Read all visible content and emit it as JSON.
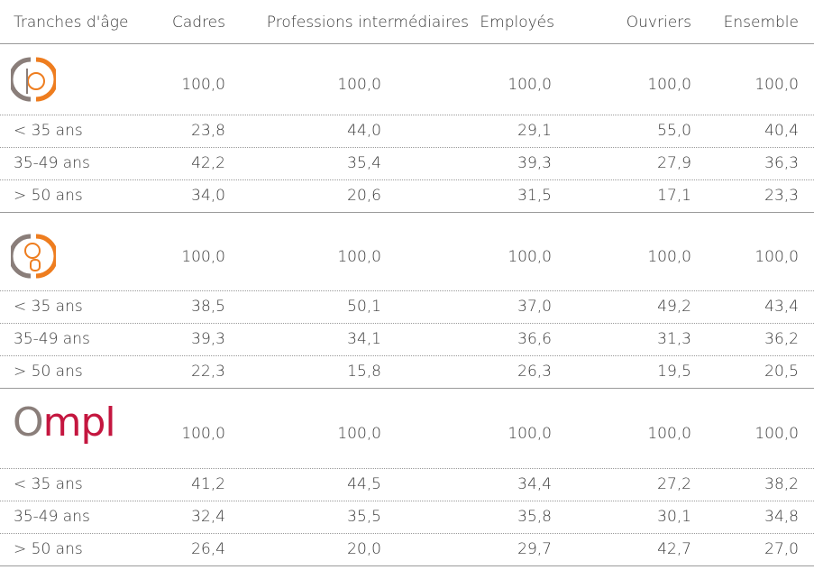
{
  "header": [
    "Tranches d'âge",
    "Cadres",
    "Professions intermédiaires",
    "Employés",
    "Ouvriers",
    "Ensemble"
  ],
  "groups": [
    {
      "total": [
        "100,0",
        "100,0",
        "100,0",
        "100,0",
        "100,0"
      ],
      "rows": [
        {
          "label": "< 35 ans",
          "values": [
            "23,8",
            "44,0",
            "29,1",
            "55,0",
            "40,4"
          ]
        },
        {
          "label": "35-49 ans",
          "values": [
            "42,2",
            "35,4",
            "39,3",
            "27,9",
            "36,3"
          ]
        },
        {
          "label": "> 50 ans",
          "values": [
            "34,0",
            "20,6",
            "31,5",
            "17,1",
            "23,3"
          ]
        }
      ]
    },
    {
      "total": [
        "100,0",
        "100,0",
        "100,0",
        "100,0",
        "100,0"
      ],
      "rows": [
        {
          "label": "< 35 ans",
          "values": [
            "38,5",
            "50,1",
            "37,0",
            "49,2",
            "43,4"
          ]
        },
        {
          "label": "35-49 ans",
          "values": [
            "39,3",
            "34,1",
            "36,6",
            "31,3",
            "36,2"
          ]
        },
        {
          "label": "> 50 ans",
          "values": [
            "22,3",
            "15,8",
            "26,3",
            "19,5",
            "20,5"
          ]
        }
      ]
    },
    {
      "brand": "Ompl",
      "total": [
        "100,0",
        "100,0",
        "100,0",
        "100,0",
        "100,0"
      ],
      "rows": [
        {
          "label": "< 35 ans",
          "values": [
            "41,2",
            "44,5",
            "34,4",
            "27,2",
            "38,2"
          ]
        },
        {
          "label": "35-49 ans",
          "values": [
            "32,4",
            "35,5",
            "35,8",
            "30,1",
            "34,8"
          ]
        },
        {
          "label": "> 50 ans",
          "values": [
            "26,4",
            "20,0",
            "29,7",
            "42,7",
            "27,0"
          ]
        }
      ]
    }
  ]
}
